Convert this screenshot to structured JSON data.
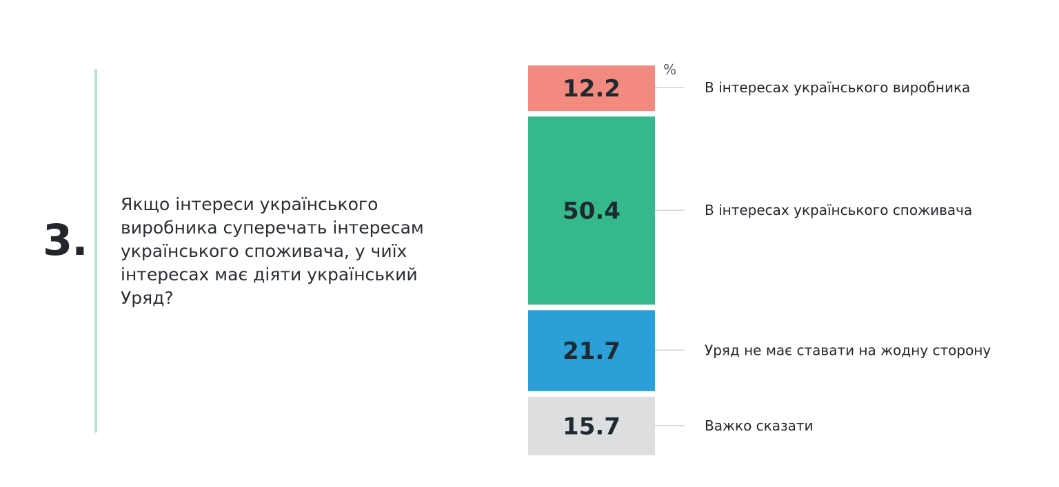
{
  "question": {
    "number": "3.",
    "text": "Якщо інтереси українського виробника суперечать інтересам українського споживача, у чиїх інтересах має діяти український Уряд?"
  },
  "colors": {
    "accent_line": "#b6e3c9",
    "producer": "#f28a80",
    "consumer": "#36b98a",
    "neutral": "#2b9fd8",
    "hard_to_say": "#dcdee0"
  },
  "chart_data": {
    "type": "bar",
    "subtype": "stacked-vertical",
    "unit": "%",
    "categories": [
      "В інтересах українського виробника",
      "В інтересах українського споживача",
      "Уряд не має ставати на жодну сторону",
      "Важко сказати"
    ],
    "values": [
      12.2,
      50.4,
      21.7,
      15.7
    ],
    "value_labels": [
      "12.2",
      "50.4",
      "21.7",
      "15.7"
    ],
    "colors": [
      "#f28a80",
      "#36b98a",
      "#2b9fd8",
      "#dcdee0"
    ]
  }
}
